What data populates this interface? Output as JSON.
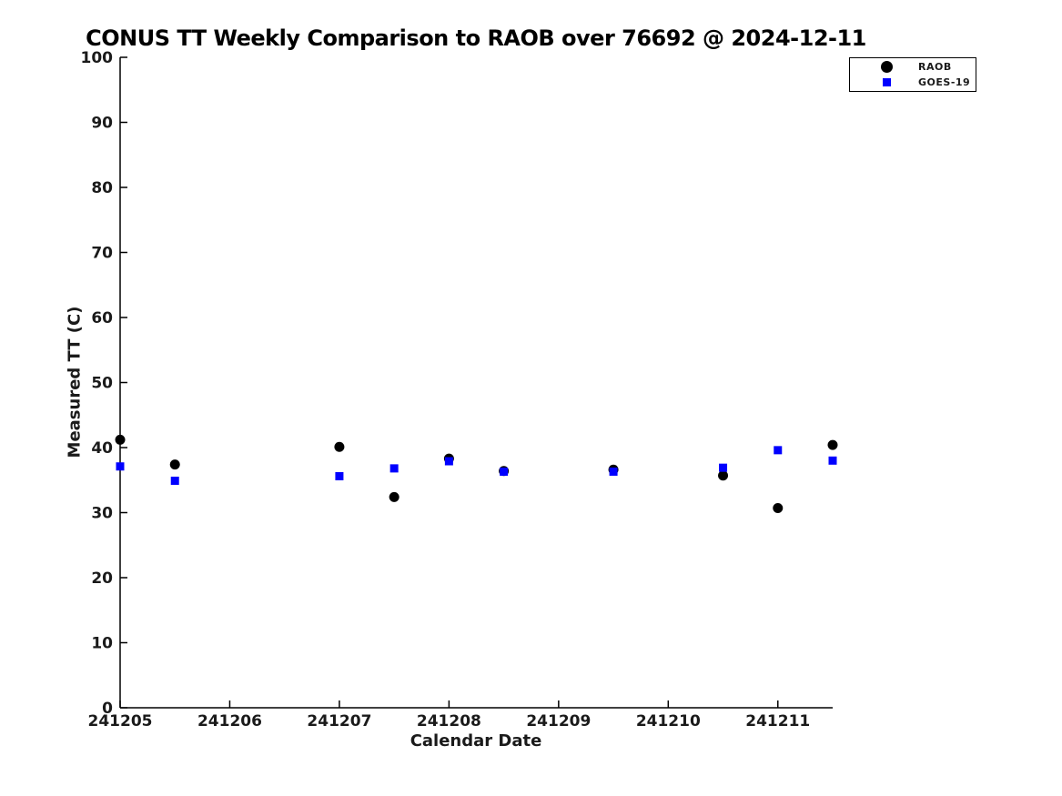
{
  "figure": {
    "title": "CONUS TT Weekly Comparison to RAOB over 76692 @ 2024-12-11"
  },
  "chart_data": {
    "type": "scatter",
    "title": "CONUS TT Weekly Comparison to RAOB over 76692 @ 2024-12-11",
    "xlabel": "Calendar Date",
    "ylabel": "Measured TT (C)",
    "xlim": [
      241205,
      241211.5
    ],
    "ylim": [
      0,
      100
    ],
    "x_ticks": [
      241205,
      241206,
      241207,
      241208,
      241209,
      241210,
      241211
    ],
    "y_ticks": [
      0,
      10,
      20,
      30,
      40,
      50,
      60,
      70,
      80,
      90,
      100
    ],
    "grid": false,
    "legend": {
      "position": "outside-top-right",
      "items": [
        "RAOB",
        "GOES-19"
      ]
    },
    "x": [
      241205.0,
      241205.5,
      241207.0,
      241207.5,
      241208.0,
      241208.5,
      241209.5,
      241210.5,
      241211.0,
      241211.5
    ],
    "series": [
      {
        "name": "RAOB",
        "marker": "circle",
        "color": "#000000",
        "values": [
          41.2,
          37.4,
          40.1,
          32.4,
          38.3,
          36.4,
          36.6,
          35.7,
          30.7,
          40.4
        ]
      },
      {
        "name": "GOES-19",
        "marker": "square",
        "color": "#0000ff",
        "values": [
          37.1,
          34.9,
          35.6,
          36.8,
          37.9,
          36.3,
          36.3,
          36.9,
          39.6,
          38.0
        ]
      }
    ]
  }
}
